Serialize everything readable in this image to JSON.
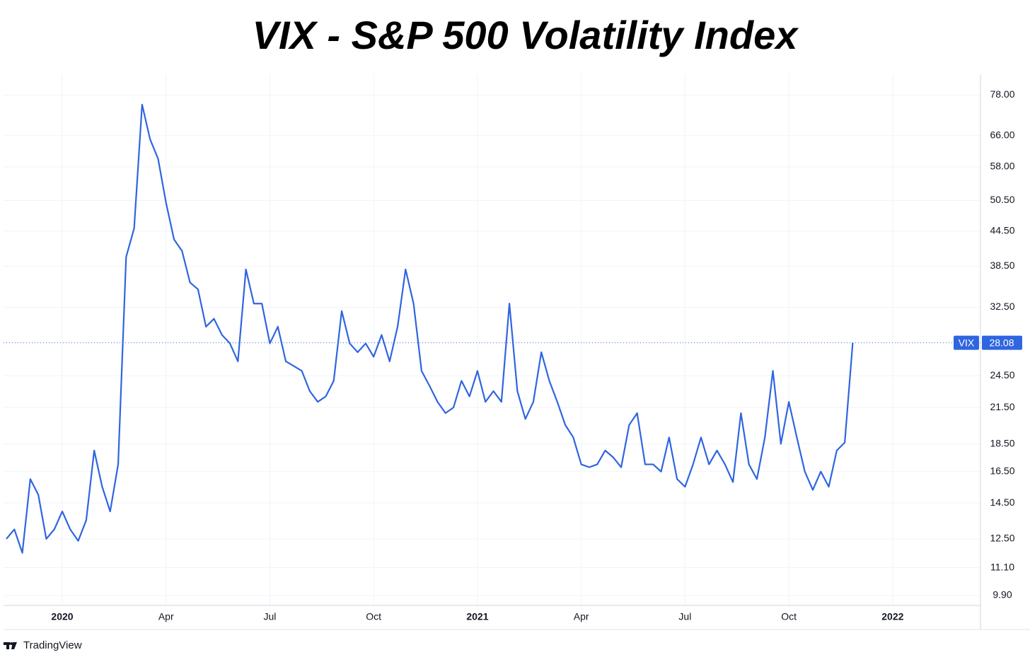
{
  "title": "VIX - S&P 500 Volatility Index",
  "watermark": "TradingView",
  "chart_data": {
    "type": "line",
    "categories": [
      null,
      null,
      null,
      null,
      null,
      null,
      null,
      "2020",
      null,
      null,
      null,
      null,
      null,
      null,
      null,
      null,
      null,
      null,
      null,
      null,
      "Apr",
      null,
      null,
      null,
      null,
      null,
      null,
      null,
      null,
      null,
      null,
      null,
      null,
      "Jul",
      null,
      null,
      null,
      null,
      null,
      null,
      null,
      null,
      null,
      null,
      null,
      null,
      "Oct",
      null,
      null,
      null,
      null,
      null,
      null,
      null,
      null,
      null,
      null,
      null,
      null,
      "2021",
      null,
      null,
      null,
      null,
      null,
      null,
      null,
      null,
      null,
      null,
      null,
      null,
      "Apr",
      null,
      null,
      null,
      null,
      null,
      null,
      null,
      null,
      null,
      null,
      null,
      null,
      "Jul",
      null,
      null,
      null,
      null,
      null,
      null,
      null,
      null,
      null,
      null,
      null,
      null,
      "Oct",
      null,
      null,
      null,
      null,
      null,
      null,
      null,
      null,
      null,
      null,
      null,
      null,
      "2022",
      null,
      null,
      null,
      null,
      null,
      null,
      null,
      null,
      null,
      null,
      null
    ],
    "series": [
      {
        "name": "VIX",
        "color": "#2f65e0",
        "values": [
          12.5,
          13,
          11.8,
          16,
          15,
          12.5,
          13,
          14,
          13,
          12.4,
          13.5,
          18,
          15.5,
          14,
          17,
          40,
          45,
          75,
          65,
          60,
          50,
          43,
          41,
          36,
          35,
          30,
          31,
          29,
          28,
          26,
          38,
          33,
          33,
          28,
          30,
          26,
          25.5,
          25,
          23,
          22,
          22.5,
          24,
          32,
          28,
          27,
          28,
          26.5,
          29,
          26,
          30,
          38,
          33,
          25,
          23.5,
          22,
          21,
          21.5,
          24,
          22.5,
          25,
          22,
          23,
          22,
          33,
          23,
          20.5,
          22,
          27,
          24,
          22,
          20,
          19,
          17,
          16.8,
          17,
          18,
          17.5,
          16.8,
          20,
          21,
          17,
          17,
          16.5,
          19,
          16,
          15.5,
          17,
          19,
          17,
          18,
          17,
          15.8,
          21,
          17,
          16,
          19,
          25,
          18.5,
          22,
          19,
          16.5,
          15.3,
          16.5,
          15.5,
          18,
          18.6,
          28.08,
          null,
          null,
          null,
          null,
          null,
          null,
          null,
          null,
          null,
          null,
          null,
          null,
          null,
          null,
          null,
          null
        ]
      }
    ],
    "ylim": [
      9.5,
      85
    ],
    "yticks": [
      {
        "value": 78,
        "label": "78.00"
      },
      {
        "value": 66,
        "label": "66.00"
      },
      {
        "value": 58,
        "label": "58.00"
      },
      {
        "value": 50.5,
        "label": "50.50"
      },
      {
        "value": 44.5,
        "label": "44.50"
      },
      {
        "value": 38.5,
        "label": "38.50"
      },
      {
        "value": 32.5,
        "label": "32.50"
      },
      {
        "value": 24.5,
        "label": "24.50"
      },
      {
        "value": 21.5,
        "label": "21.50"
      },
      {
        "value": 18.5,
        "label": "18.50"
      },
      {
        "value": 16.5,
        "label": "16.50"
      },
      {
        "value": 14.5,
        "label": "14.50"
      },
      {
        "value": 12.5,
        "label": "12.50"
      },
      {
        "value": 11.1,
        "label": "11.10"
      },
      {
        "value": 9.9,
        "label": "9.90"
      }
    ],
    "log_scale": true,
    "grid": true
  }
}
